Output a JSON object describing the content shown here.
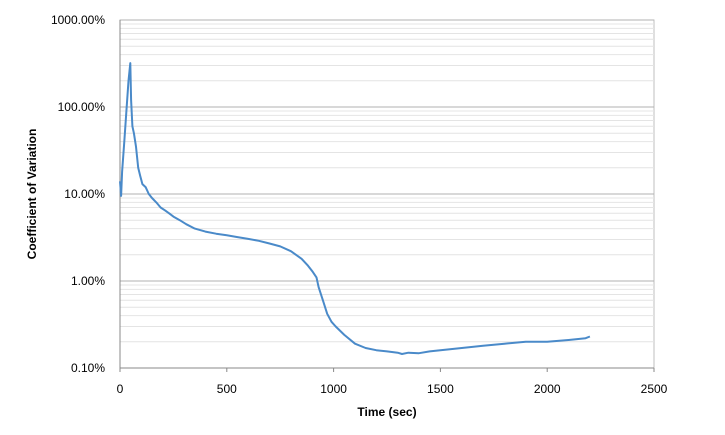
{
  "chart_data": {
    "type": "line",
    "title": "",
    "xlabel": "Time (sec)",
    "ylabel": "Coefficient of Variation",
    "xlim": [
      0,
      2500
    ],
    "ylim": [
      0.1,
      1000
    ],
    "yscale": "log",
    "x_ticks": [
      0,
      500,
      1000,
      1500,
      2000,
      2500
    ],
    "x_tick_labels": [
      "0",
      "500",
      "1000",
      "1500",
      "2000",
      "2500"
    ],
    "y_ticks": [
      0.1,
      1,
      10,
      100,
      1000
    ],
    "y_tick_labels": [
      "0.10%",
      "1.00%",
      "10.00%",
      "100.00%",
      "1000.00%"
    ],
    "grid": "horizontal major and minor",
    "legend": "none",
    "series": [
      {
        "color": "#4a8ac9",
        "x": [
          0,
          5,
          10,
          20,
          30,
          40,
          48,
          52,
          58,
          65,
          75,
          85,
          95,
          105,
          120,
          135,
          150,
          170,
          190,
          210,
          230,
          250,
          280,
          310,
          350,
          400,
          450,
          500,
          550,
          600,
          650,
          700,
          750,
          800,
          850,
          880,
          900,
          920,
          930,
          950,
          970,
          990,
          1010,
          1050,
          1100,
          1150,
          1200,
          1250,
          1300,
          1320,
          1350,
          1400,
          1450,
          1500,
          1600,
          1700,
          1800,
          1900,
          2000,
          2100,
          2180,
          2200
        ],
        "y": [
          14,
          9.5,
          18,
          40,
          90,
          200,
          320,
          120,
          60,
          50,
          35,
          20,
          16,
          13,
          12,
          10,
          9,
          8,
          7,
          6.5,
          6,
          5.5,
          5,
          4.5,
          4,
          3.7,
          3.5,
          3.35,
          3.2,
          3.05,
          2.9,
          2.7,
          2.5,
          2.2,
          1.8,
          1.5,
          1.3,
          1.1,
          0.85,
          0.6,
          0.42,
          0.34,
          0.3,
          0.24,
          0.19,
          0.17,
          0.16,
          0.155,
          0.15,
          0.145,
          0.15,
          0.148,
          0.155,
          0.16,
          0.17,
          0.18,
          0.19,
          0.2,
          0.2,
          0.21,
          0.22,
          0.23
        ]
      }
    ]
  }
}
